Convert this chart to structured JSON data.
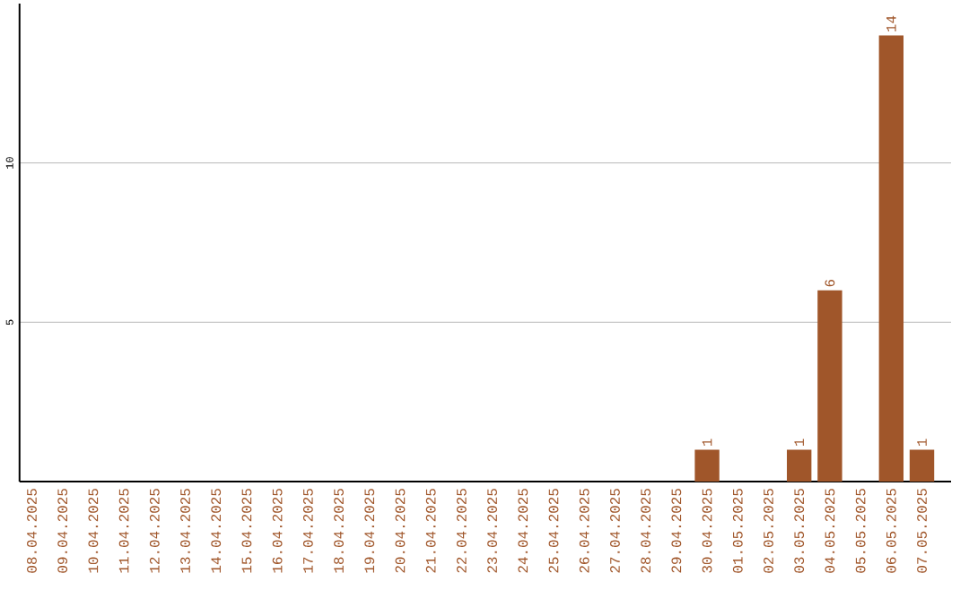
{
  "chart_data": {
    "type": "bar",
    "categories": [
      "08.04.2025",
      "09.04.2025",
      "10.04.2025",
      "11.04.2025",
      "12.04.2025",
      "13.04.2025",
      "14.04.2025",
      "15.04.2025",
      "16.04.2025",
      "17.04.2025",
      "18.04.2025",
      "19.04.2025",
      "20.04.2025",
      "21.04.2025",
      "22.04.2025",
      "23.04.2025",
      "24.04.2025",
      "25.04.2025",
      "26.04.2025",
      "27.04.2025",
      "28.04.2025",
      "29.04.2025",
      "30.04.2025",
      "01.05.2025",
      "02.05.2025",
      "03.05.2025",
      "04.05.2025",
      "05.05.2025",
      "06.05.2025",
      "07.05.2025"
    ],
    "values": [
      0,
      0,
      0,
      0,
      0,
      0,
      0,
      0,
      0,
      0,
      0,
      0,
      0,
      0,
      0,
      0,
      0,
      0,
      0,
      0,
      0,
      0,
      1,
      0,
      0,
      1,
      6,
      0,
      14,
      1
    ],
    "value_labels": [
      null,
      null,
      null,
      null,
      null,
      null,
      null,
      null,
      null,
      null,
      null,
      null,
      null,
      null,
      null,
      null,
      null,
      null,
      null,
      null,
      null,
      null,
      "1",
      null,
      null,
      "1",
      "6",
      null,
      "14",
      "1"
    ],
    "color": "#a0562a",
    "ylim": [
      0,
      15
    ],
    "yticks": [
      5,
      10
    ],
    "grid": "y"
  }
}
